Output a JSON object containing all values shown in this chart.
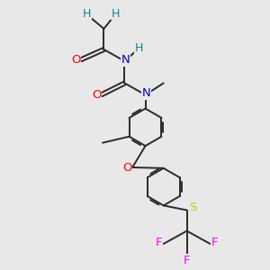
{
  "bg_color": "#e8e8e8",
  "bond_color": "#2a2a2a",
  "atom_colors": {
    "O": "#ff0000",
    "N": "#0000cc",
    "H": "#008b8b",
    "S": "#cccc00",
    "F": "#ff00ff",
    "C": "#2a2a2a"
  },
  "figsize": [
    3.0,
    3.0
  ],
  "dpi": 100
}
